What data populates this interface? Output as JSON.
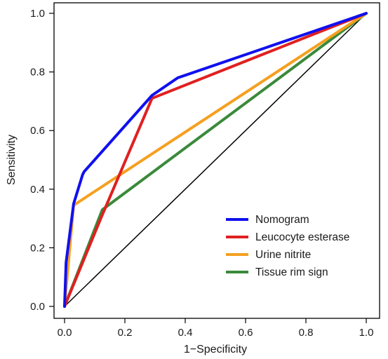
{
  "chart_data": {
    "type": "line",
    "title": "",
    "xlabel": "1−Specificity",
    "ylabel": "Sensitivity",
    "xlim": [
      0,
      1
    ],
    "ylim": [
      0,
      1
    ],
    "xticks": [
      "0.0",
      "0.2",
      "0.4",
      "0.6",
      "0.8",
      "1.0"
    ],
    "yticks": [
      "0.0",
      "0.2",
      "0.4",
      "0.6",
      "0.8",
      "1.0"
    ],
    "grid": false,
    "legend_position": "bottom-right",
    "reference_line": {
      "x": [
        0,
        1
      ],
      "y": [
        0,
        1
      ],
      "color": "#000000"
    },
    "series": [
      {
        "name": "Nomogram",
        "color": "#1010f0",
        "x": [
          0,
          0.005,
          0.03,
          0.06,
          0.065,
          0.29,
          0.375,
          1.0
        ],
        "y": [
          0,
          0.15,
          0.35,
          0.45,
          0.46,
          0.72,
          0.78,
          1.0
        ]
      },
      {
        "name": "Leucocyte esterase",
        "color": "#e02020",
        "x": [
          0,
          0.12,
          0.29,
          1.0
        ],
        "y": [
          0,
          0.3,
          0.71,
          1.0
        ]
      },
      {
        "name": "Urine nitrite",
        "color": "#f5a020",
        "x": [
          0,
          0.03,
          1.0
        ],
        "y": [
          0,
          0.345,
          1.0
        ]
      },
      {
        "name": "Tissue rim sign",
        "color": "#3a8a3a",
        "x": [
          0,
          0.125,
          1.0
        ],
        "y": [
          0,
          0.33,
          1.0
        ]
      }
    ]
  }
}
